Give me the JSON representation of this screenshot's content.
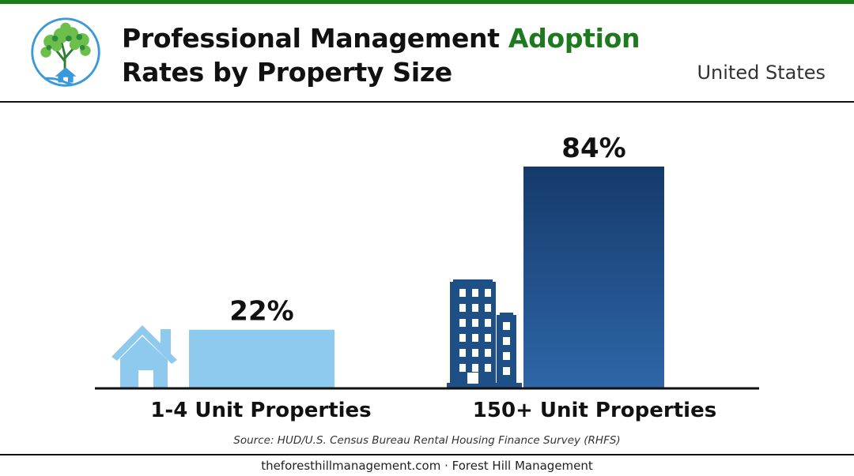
{
  "header": {
    "title_part1": "Professional Management ",
    "title_accent": "Adoption",
    "title_part2": "Rates by Property Size",
    "region": "United States"
  },
  "chart_data": {
    "type": "bar",
    "categories": [
      "1-4 Unit Properties",
      "150+ Unit Properties"
    ],
    "values": [
      22,
      84
    ],
    "value_labels": [
      "22%",
      "84%"
    ],
    "unit": "%",
    "ylim": [
      0,
      100
    ],
    "grid": false,
    "legend": "none",
    "colors": [
      "#8ec9ee",
      "#1e4f86"
    ],
    "category_icons": [
      "house-icon",
      "apartment-building-icon"
    ]
  },
  "source": "Source: HUD/U.S. Census Bureau Rental Housing Finance Survey (RHFS)",
  "footer": "theforesthillmanagement.com · Forest Hill Management",
  "colors": {
    "accent": "#1e7a1e",
    "text": "#111111",
    "logo_blue": "#3a9ad9",
    "logo_green": "#5fae3c"
  },
  "logo_icon": "forest-hill-tree-house-logo"
}
